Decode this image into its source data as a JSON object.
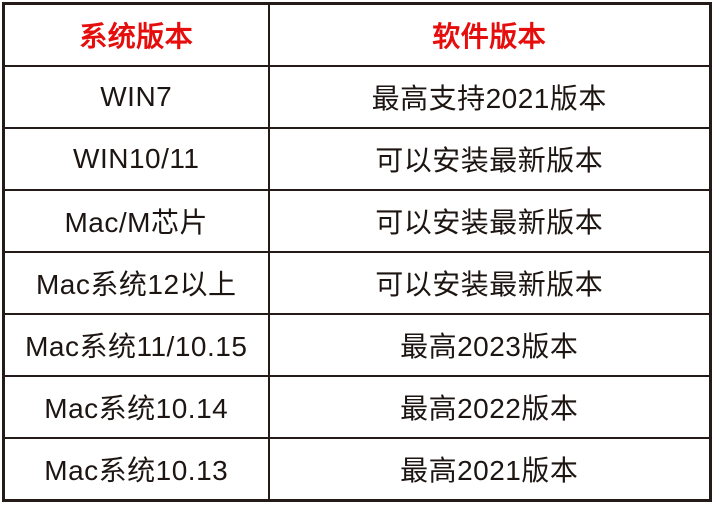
{
  "colors": {
    "header_text": "#e60d0d",
    "body_text": "#1d1512",
    "border": "#241b18",
    "background": "#ffffff"
  },
  "table": {
    "headers": [
      "系统版本",
      "软件版本"
    ],
    "rows": [
      {
        "system": "WIN7",
        "software": "最高支持2021版本"
      },
      {
        "system": "WIN10/11",
        "software": "可以安装最新版本"
      },
      {
        "system": "Mac/M芯片",
        "software": "可以安装最新版本"
      },
      {
        "system": "Mac系统12以上",
        "software": "可以安装最新版本"
      },
      {
        "system": "Mac系统11/10.15",
        "software": "最高2023版本"
      },
      {
        "system": "Mac系统10.14",
        "software": "最高2022版本"
      },
      {
        "system": "Mac系统10.13",
        "software": "最高2021版本"
      }
    ]
  },
  "chart_data": {
    "type": "table",
    "title": "",
    "columns": [
      "系统版本",
      "软件版本"
    ],
    "rows": [
      [
        "WIN7",
        "最高支持2021版本"
      ],
      [
        "WIN10/11",
        "可以安装最新版本"
      ],
      [
        "Mac/M芯片",
        "可以安装最新版本"
      ],
      [
        "Mac系统12以上",
        "可以安装最新版本"
      ],
      [
        "Mac系统11/10.15",
        "最高2023版本"
      ],
      [
        "Mac系统10.14",
        "最高2022版本"
      ],
      [
        "Mac系统10.13",
        "最高2021版本"
      ]
    ],
    "layout_hints": {
      "header_text_color": "#e60d0d",
      "grid": true,
      "column_width_ratio": [
        0.375,
        0.625
      ],
      "rows_count": 8
    }
  }
}
